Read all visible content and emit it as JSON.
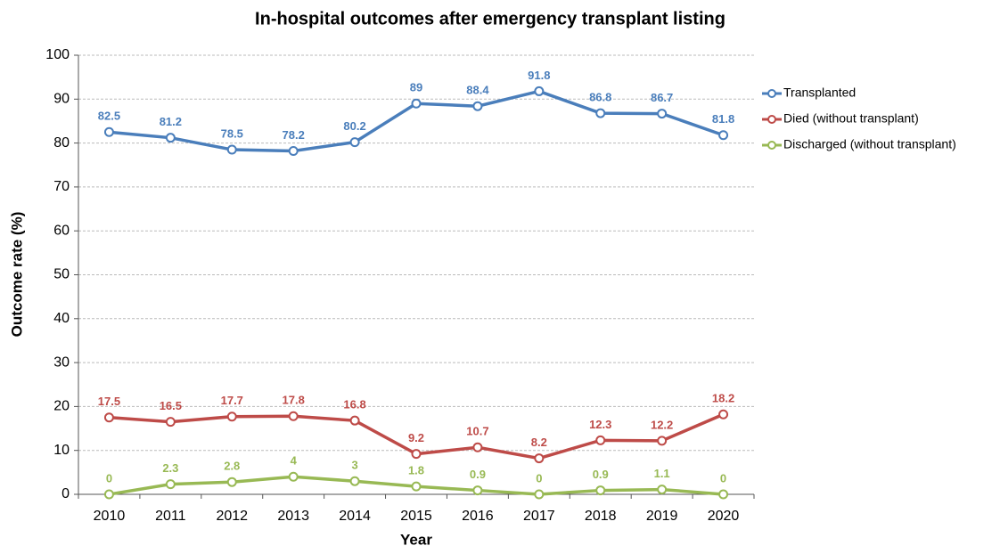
{
  "chart_data": {
    "type": "line",
    "title": "In-hospital outcomes after emergency transplant listing",
    "x_label": "Year",
    "y_label": "Outcome rate (%)",
    "categories": [
      "2010",
      "2011",
      "2012",
      "2013",
      "2014",
      "2015",
      "2016",
      "2017",
      "2018",
      "2019",
      "2020"
    ],
    "series": [
      {
        "name": "Transplanted",
        "color": "#4a7ebb",
        "values": [
          82.5,
          81.2,
          78.5,
          78.2,
          80.2,
          89,
          88.4,
          91.8,
          86.8,
          86.7,
          81.8
        ]
      },
      {
        "name": "Died (without transplant)",
        "color": "#be4b48",
        "values": [
          17.5,
          16.5,
          17.7,
          17.8,
          16.8,
          9.2,
          10.7,
          8.2,
          12.3,
          12.2,
          18.2
        ]
      },
      {
        "name": "Discharged (without transplant)",
        "color": "#98b954",
        "values": [
          0,
          2.3,
          2.8,
          4,
          3,
          1.8,
          0.9,
          0,
          0.9,
          1.1,
          0
        ]
      }
    ],
    "ylim": [
      0,
      100
    ],
    "yticks": [
      0,
      10,
      20,
      30,
      40,
      50,
      60,
      70,
      80,
      90,
      100
    ],
    "grid": true,
    "legend": "right",
    "data_labels": true
  }
}
